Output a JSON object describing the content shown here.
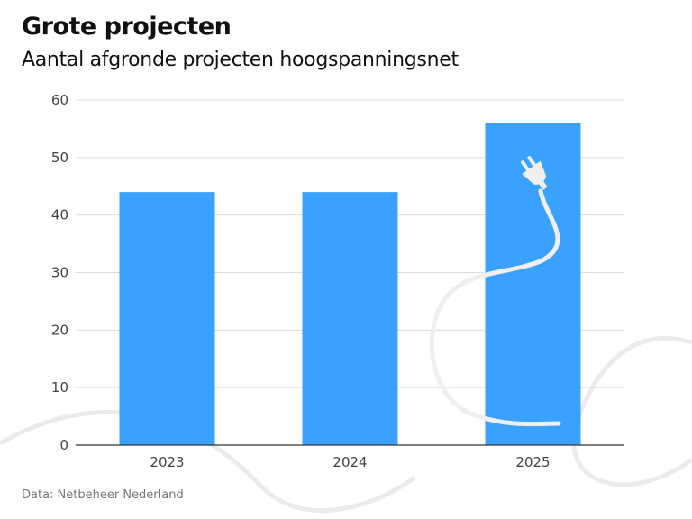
{
  "chart_data": {
    "type": "bar",
    "title": "Grote projecten",
    "subtitle": "Aantal afgronde projecten hoogspanningsnet",
    "categories": [
      "2023",
      "2024",
      "2025"
    ],
    "values": [
      44,
      44,
      56
    ],
    "ylim": [
      0,
      60
    ],
    "yticks": [
      0,
      10,
      20,
      30,
      40,
      50,
      60
    ],
    "xlabel": "",
    "ylabel": "",
    "grid": true,
    "bar_color": "#3ba1ff",
    "decoration": "plug-cable-icon"
  },
  "source": "Data: Netbeheer Nederland"
}
